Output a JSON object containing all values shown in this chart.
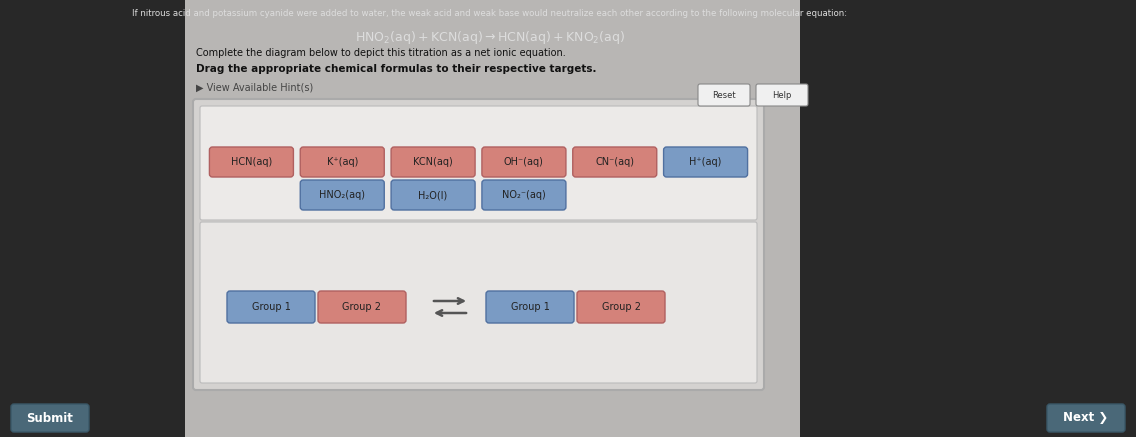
{
  "bg_left_color": "#2a2a2a",
  "bg_right_color": "#c8c8c8",
  "panel_outer_color": "#d5d3d1",
  "panel_inner_top_color": "#eceae8",
  "panel_inner_bot_color": "#e8e6e4",
  "title_text": "If nitrous acid and potassium cyanide were added to water, the weak acid and weak base would neutralize each other according to the following molecular equation:",
  "equation_text": "HNO$_2$(aq) + KCN(aq) → HCN(aq) + KNO$_2$(aq)",
  "instruction1": "Complete the diagram below to depict this titration as a net ionic equation.",
  "instruction2": "Drag the appropriate chemical formulas to their respective targets.",
  "hint_text": "▶ View Available Hint(s)",
  "pink": "#d4827a",
  "blue": "#7a9bc4",
  "pink_light": "#e8a898",
  "blue_light": "#8fb0d4",
  "row1_items": [
    {
      "text": "HCN(aq)",
      "color": "pink"
    },
    {
      "text": "K⁺(aq)",
      "color": "pink"
    },
    {
      "text": "KCN(aq)",
      "color": "pink"
    },
    {
      "text": "OH⁻(aq)",
      "color": "pink"
    },
    {
      "text": "CN⁻(aq)",
      "color": "pink"
    },
    {
      "text": "H⁺(aq)",
      "color": "blue"
    }
  ],
  "row2_items": [
    {
      "text": "HNO₂(aq)",
      "color": "blue"
    },
    {
      "text": "H₂O(l)",
      "color": "blue"
    },
    {
      "text": "NO₂⁻(aq)",
      "color": "blue"
    }
  ],
  "submit_text": "Submit",
  "next_text": "Next ❯",
  "reset_text": "Reset",
  "help_text": "Help"
}
